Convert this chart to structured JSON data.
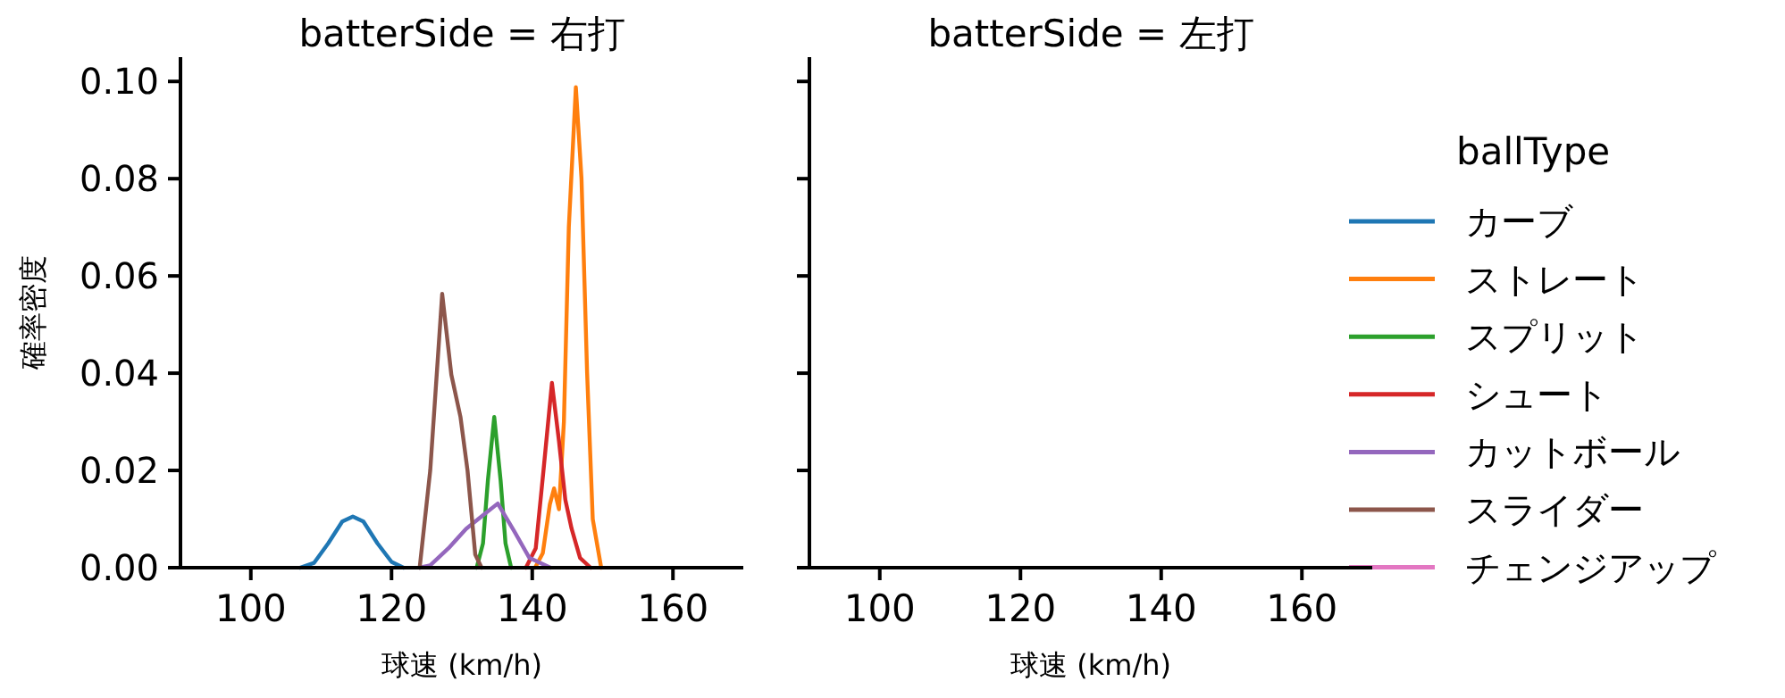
{
  "chart_data": [
    {
      "type": "line",
      "title": "batterSide = 右打",
      "xlabel": "球速 (km/h)",
      "ylabel": "確率密度",
      "legend_title": "ballType",
      "legend": "right",
      "grid": false,
      "xlim": [
        90,
        170
      ],
      "xticks": [
        100,
        120,
        140,
        160
      ],
      "ylim": [
        0,
        0.105
      ],
      "yticks": [
        {
          "value": 0,
          "label": "0.00"
        },
        {
          "value": 0.02,
          "label": "0.02"
        },
        {
          "value": 0.04,
          "label": "0.04"
        },
        {
          "value": 0.06,
          "label": "0.06"
        },
        {
          "value": 0.08,
          "label": "0.08"
        },
        {
          "value": 0.1,
          "label": "0.10"
        }
      ],
      "series": [
        {
          "name": "カーブ",
          "color": "#1f77b4",
          "x": [
            107,
            109,
            111,
            113,
            114.5,
            116,
            118,
            120,
            121.7
          ],
          "values": [
            0,
            0.001,
            0.005,
            0.0095,
            0.0105,
            0.0095,
            0.005,
            0.0012,
            0
          ]
        },
        {
          "name": "ストレート",
          "color": "#ff7f0e",
          "x": [
            140.4,
            141.5,
            142.5,
            143.1,
            143.8,
            144.5,
            145.2,
            146.2,
            147,
            147.8,
            148.6,
            149.8
          ],
          "values": [
            0,
            0.003,
            0.013,
            0.0163,
            0.012,
            0.03,
            0.07,
            0.0988,
            0.08,
            0.04,
            0.01,
            0
          ]
        },
        {
          "name": "スプリット",
          "color": "#2ca02c",
          "x": [
            132.1,
            133,
            133.7,
            134.6,
            135.5,
            136.2,
            137
          ],
          "values": [
            0,
            0.005,
            0.018,
            0.031,
            0.018,
            0.005,
            0
          ]
        },
        {
          "name": "シュート",
          "color": "#d62728",
          "x": [
            139.1,
            140.5,
            141.6,
            142.8,
            143.8,
            144.7,
            145.6,
            146.8,
            148.3
          ],
          "values": [
            0,
            0.004,
            0.02,
            0.038,
            0.026,
            0.014,
            0.008,
            0.002,
            0
          ]
        },
        {
          "name": "カットボール",
          "color": "#9467bd",
          "x": [
            124,
            125.5,
            128.1,
            130.6,
            133.2,
            135.1,
            137.4,
            139.6,
            142.6
          ],
          "values": [
            0,
            0.0005,
            0.004,
            0.008,
            0.011,
            0.0132,
            0.0076,
            0.002,
            0
          ]
        },
        {
          "name": "スライダー",
          "color": "#8c564b",
          "x": [
            124,
            125.5,
            127.2,
            128.5,
            129.8,
            130.8,
            131.9,
            132.8
          ],
          "values": [
            0,
            0.02,
            0.0563,
            0.0397,
            0.031,
            0.02,
            0.0027,
            0
          ]
        },
        {
          "name": "チェンジアップ",
          "color": "#e377c2"
        }
      ]
    },
    {
      "type": "line",
      "title": "batterSide = 左打",
      "xlabel": "球速 (km/h)",
      "grid": false,
      "tick_labels": "x",
      "xlim": [
        90,
        170
      ],
      "xticks": [
        100,
        120,
        140,
        160
      ],
      "ylim": [
        0,
        0.105
      ],
      "yticks": [
        {
          "value": 0,
          "label": null
        },
        {
          "value": 0.02,
          "label": null
        },
        {
          "value": 0.04,
          "label": null
        },
        {
          "value": 0.06,
          "label": null
        },
        {
          "value": 0.08,
          "label": null
        },
        {
          "value": 0.1,
          "label": null
        }
      ]
    }
  ]
}
